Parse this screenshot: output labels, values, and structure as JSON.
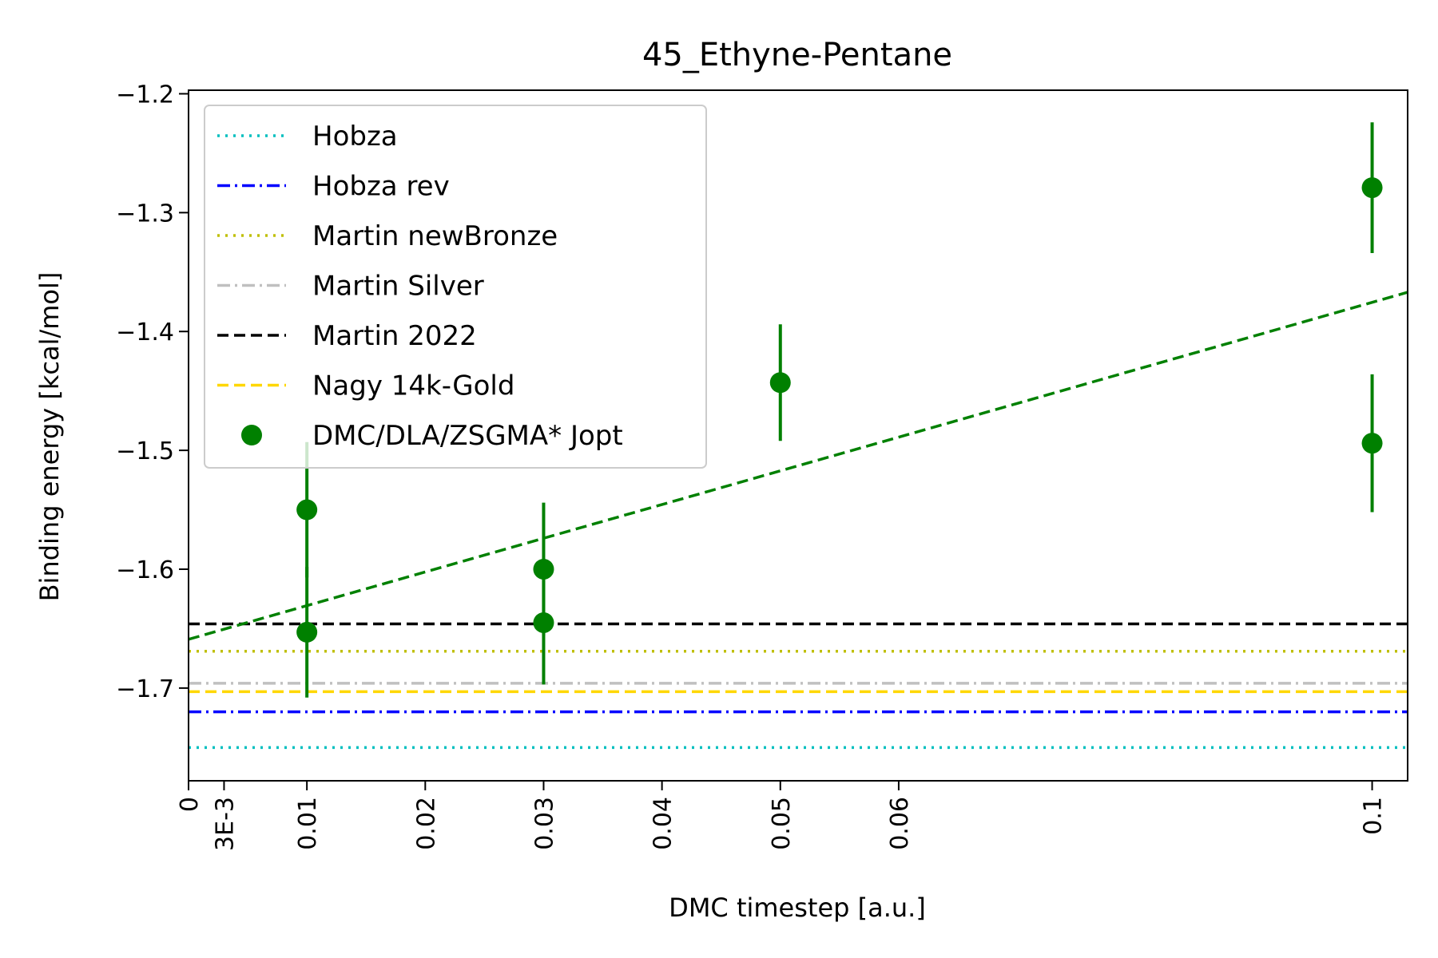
{
  "chart_data": {
    "type": "scatter",
    "title": "45_Ethyne-Pentane",
    "xlabel": "DMC timestep [a.u.]",
    "ylabel": "Binding energy [kcal/mol]",
    "xlim": [
      0,
      0.103
    ],
    "ylim": [
      -1.778,
      -1.197
    ],
    "x_ticks": [
      {
        "value": 0,
        "label": "0"
      },
      {
        "value": 0.003,
        "label": "3E-3"
      },
      {
        "value": 0.01,
        "label": "0.01"
      },
      {
        "value": 0.02,
        "label": "0.02"
      },
      {
        "value": 0.03,
        "label": "0.03"
      },
      {
        "value": 0.04,
        "label": "0.04"
      },
      {
        "value": 0.05,
        "label": "0.05"
      },
      {
        "value": 0.06,
        "label": "0.06"
      },
      {
        "value": 0.1,
        "label": "0.1"
      }
    ],
    "y_ticks": [
      {
        "value": -1.2,
        "label": "−1.2"
      },
      {
        "value": -1.3,
        "label": "−1.3"
      },
      {
        "value": -1.4,
        "label": "−1.4"
      },
      {
        "value": -1.5,
        "label": "−1.5"
      },
      {
        "value": -1.6,
        "label": "−1.6"
      },
      {
        "value": -1.7,
        "label": "−1.7"
      }
    ],
    "reference_lines": [
      {
        "name": "Hobza",
        "y": -1.75,
        "color": "#00bfbf",
        "style": "dotted"
      },
      {
        "name": "Hobza rev",
        "y": -1.72,
        "color": "#0000ff",
        "style": "dashdot"
      },
      {
        "name": "Martin newBronze",
        "y": -1.669,
        "color": "#bfbf00",
        "style": "dotted"
      },
      {
        "name": "Martin Silver",
        "y": -1.696,
        "color": "#c0c0c0",
        "style": "dashdot"
      },
      {
        "name": "Martin 2022",
        "y": -1.646,
        "color": "#000000",
        "style": "dashed"
      },
      {
        "name": "Nagy 14k-Gold",
        "y": -1.703,
        "color": "#ffd700",
        "style": "dashed"
      }
    ],
    "series": [
      {
        "name": "DMC/DLA/ZSGMA* Jopt",
        "color": "#008000",
        "points": [
          {
            "x": 0.01,
            "y": -1.55,
            "err": 0.057
          },
          {
            "x": 0.01,
            "y": -1.653,
            "err": 0.055
          },
          {
            "x": 0.03,
            "y": -1.6,
            "err": 0.056
          },
          {
            "x": 0.03,
            "y": -1.645,
            "err": 0.052
          },
          {
            "x": 0.05,
            "y": -1.443,
            "err": 0.049
          },
          {
            "x": 0.1,
            "y": -1.279,
            "err": 0.055
          },
          {
            "x": 0.1,
            "y": -1.494,
            "err": 0.058
          }
        ]
      }
    ],
    "fit_line": {
      "color": "#008000",
      "style": "dashed",
      "x": [
        0,
        0.103
      ],
      "y": [
        -1.659,
        -1.367
      ]
    },
    "legend": {
      "placement": "top-left",
      "entries": [
        "Hobza",
        "Hobza rev",
        "Martin newBronze",
        "Martin Silver",
        "Martin 2022",
        "Nagy 14k-Gold",
        "DMC/DLA/ZSGMA* Jopt"
      ]
    },
    "grid": false
  }
}
